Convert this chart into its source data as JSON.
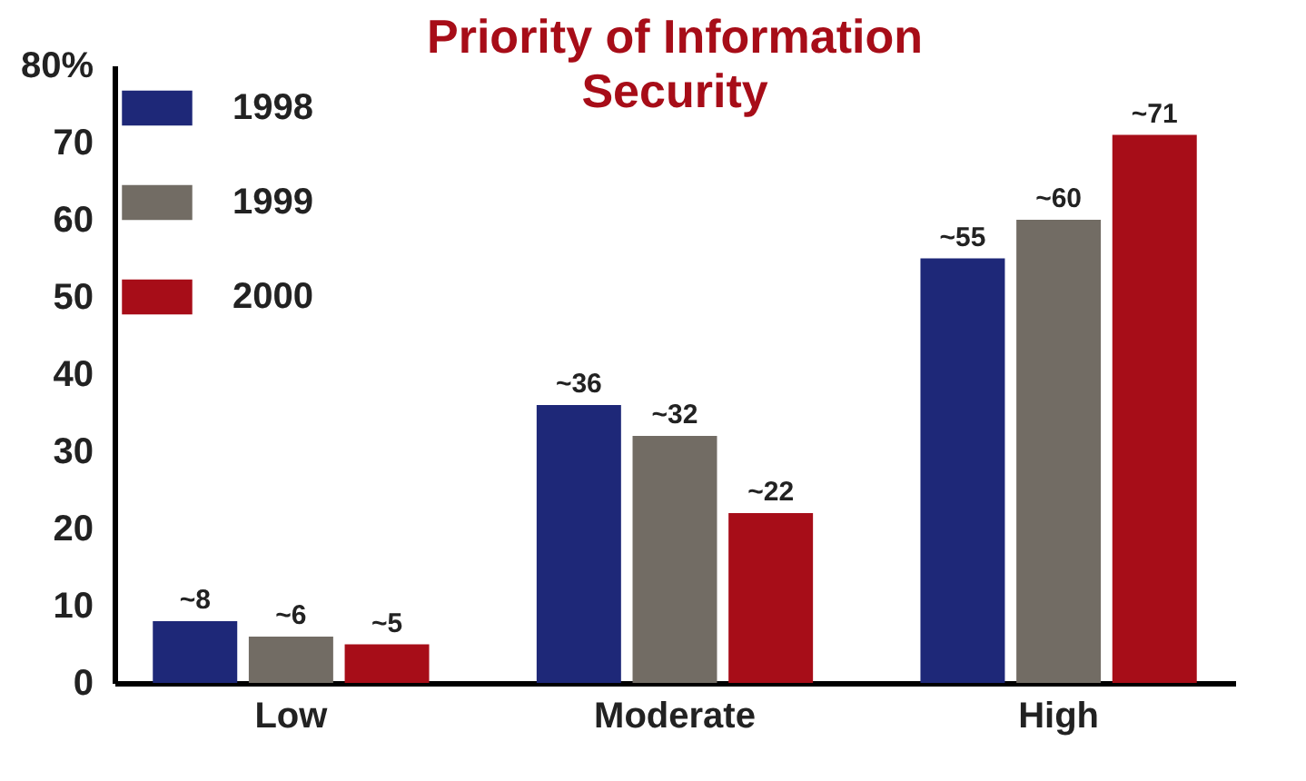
{
  "chart_data": {
    "type": "bar",
    "title": "Priority of Information Security",
    "categories": [
      "Low",
      "Moderate",
      "High"
    ],
    "series": [
      {
        "name": "1998",
        "color": "#1e2878",
        "values": [
          8,
          36,
          55
        ],
        "value_labels": [
          "~8",
          "~36",
          "~55"
        ]
      },
      {
        "name": "1999",
        "color": "#726c64",
        "values": [
          6,
          32,
          60
        ],
        "value_labels": [
          "~6",
          "~32",
          "~60"
        ]
      },
      {
        "name": "2000",
        "color": "#a70d18",
        "values": [
          5,
          22,
          71
        ],
        "value_labels": [
          "~5",
          "~22",
          "~71"
        ]
      }
    ],
    "ylim": [
      0,
      80
    ],
    "yticks": [
      0,
      10,
      20,
      30,
      40,
      50,
      60,
      70,
      {
        "value": 80,
        "label": "80%"
      }
    ],
    "grid": false,
    "legend": "top left"
  }
}
